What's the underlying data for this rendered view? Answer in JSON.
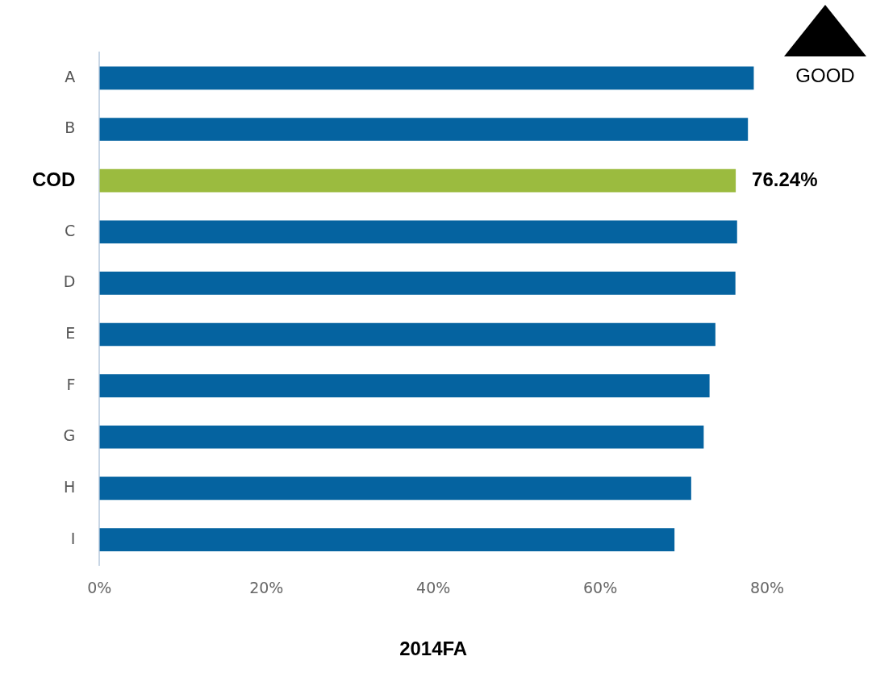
{
  "chart_data": {
    "type": "bar",
    "orientation": "horizontal",
    "categories": [
      "A",
      "B",
      "COD",
      "C",
      "D",
      "E",
      "F",
      "G",
      "H",
      "I"
    ],
    "values": [
      78.4,
      77.7,
      76.24,
      76.4,
      76.2,
      73.8,
      73.1,
      72.4,
      70.9,
      68.9
    ],
    "colors": [
      "#0563a0",
      "#0563a0",
      "#9bbb3f",
      "#0563a0",
      "#0563a0",
      "#0563a0",
      "#0563a0",
      "#0563a0",
      "#0563a0",
      "#0563a0"
    ],
    "value_labels": [
      null,
      null,
      "76.24%",
      null,
      null,
      null,
      null,
      null,
      null,
      null
    ],
    "xlim": [
      0,
      80
    ],
    "xticks": [
      {
        "value": 0,
        "label": "0%"
      },
      {
        "value": 20,
        "label": "20%"
      },
      {
        "value": 40,
        "label": "40%"
      },
      {
        "value": 60,
        "label": "60%"
      },
      {
        "value": 80,
        "label": "80%"
      }
    ],
    "xlabel": "2014FA",
    "annotations": [
      "GOOD"
    ],
    "grid": false,
    "legend": false
  }
}
